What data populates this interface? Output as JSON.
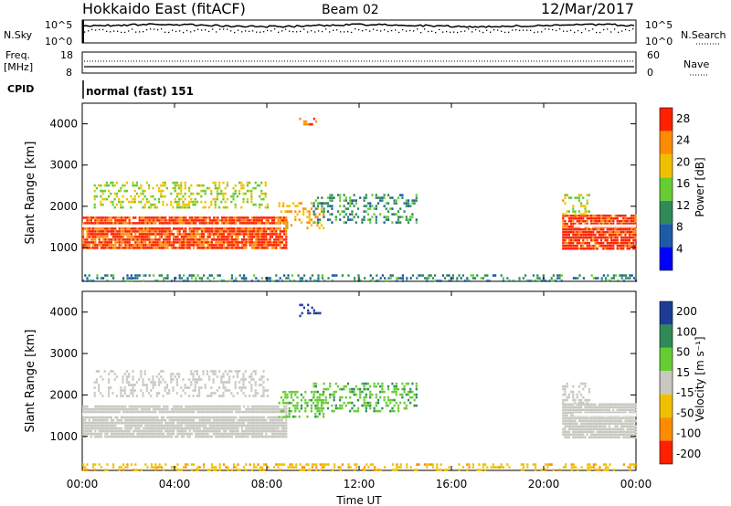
{
  "header": {
    "title": "Hokkaido East (fitACF)",
    "beam": "Beam 02",
    "date": "12/Mar/2017"
  },
  "top_panels": {
    "nsky_label": "N.Sky",
    "nsky_ticks": [
      "10^5",
      "10^0"
    ],
    "nsearch_label": "N.Search",
    "nsearch_ticks": [
      "10^5",
      "10^0"
    ],
    "freq_label": "Freq.",
    "freq_unit": "[MHz]",
    "freq_ticks": [
      "18",
      "8"
    ],
    "nave_label": "Nave",
    "nave_ticks": [
      "60",
      "0"
    ],
    "cpid_label": "CPID",
    "cpid_value": "normal (fast) 151"
  },
  "chart_data": [
    {
      "type": "heatmap",
      "name": "power",
      "ylabel": "Slant Range [km]",
      "yticks": [
        "4000",
        "3000",
        "2000",
        "1000"
      ],
      "ylim": [
        180,
        4500
      ],
      "xlim": [
        0,
        24
      ],
      "colorbar_label": "Power [dB]",
      "colorbar_ticks": [
        "28",
        "24",
        "20",
        "16",
        "12",
        "8",
        "4"
      ],
      "colorbar_range": [
        0,
        30
      ],
      "colors": [
        "#0000ff",
        "#1d5ba6",
        "#2e8b57",
        "#66cc33",
        "#f0c000",
        "#ff8c00",
        "#ff2000"
      ],
      "regions": [
        {
          "t": [
            0.0,
            8.8
          ],
          "range": [
            1000,
            1750
          ],
          "level": 27
        },
        {
          "t": [
            0.5,
            8.0
          ],
          "range": [
            2000,
            2600
          ],
          "level": 17
        },
        {
          "t": [
            8.5,
            10.5
          ],
          "range": [
            1500,
            2100
          ],
          "level": 21
        },
        {
          "t": [
            10.0,
            14.5
          ],
          "range": [
            1600,
            2300
          ],
          "level": 11
        },
        {
          "t": [
            9.4,
            10.3
          ],
          "range": [
            4000,
            4150
          ],
          "level": 26
        },
        {
          "t": [
            20.8,
            24.0
          ],
          "range": [
            1000,
            1800
          ],
          "level": 28
        },
        {
          "t": [
            20.8,
            22.0
          ],
          "range": [
            1800,
            2300
          ],
          "level": 18
        },
        {
          "t": [
            0.0,
            24.0
          ],
          "range": [
            180,
            350
          ],
          "level": 10
        }
      ]
    },
    {
      "type": "heatmap",
      "name": "velocity",
      "ylabel": "Slant Range [km]",
      "yticks": [
        "4000",
        "3000",
        "2000",
        "1000"
      ],
      "ylim": [
        180,
        4500
      ],
      "xlim": [
        0,
        24
      ],
      "xlabel": "Time UT",
      "xticks": [
        "00:00",
        "04:00",
        "08:00",
        "12:00",
        "16:00",
        "20:00",
        "00:00"
      ],
      "colorbar_label": "Velocity [m s⁻¹]",
      "colorbar_ticks": [
        "200",
        "100",
        "50",
        "15",
        "-15",
        "-50",
        "-100",
        "-200"
      ],
      "colors": [
        "#1e3c96",
        "#2e8b57",
        "#66cc33",
        "#c8c8c0",
        "#f0c000",
        "#ff8c00",
        "#ff2000"
      ],
      "regions": [
        {
          "t": [
            0.0,
            8.8
          ],
          "range": [
            1000,
            1750
          ],
          "level": 0
        },
        {
          "t": [
            0.5,
            8.0
          ],
          "range": [
            2000,
            2600
          ],
          "level": 0
        },
        {
          "t": [
            8.5,
            10.5
          ],
          "range": [
            1500,
            2100
          ],
          "level": 40
        },
        {
          "t": [
            10.0,
            14.5
          ],
          "range": [
            1600,
            2300
          ],
          "level": 45
        },
        {
          "t": [
            9.4,
            10.3
          ],
          "range": [
            3900,
            4200
          ],
          "level": 120
        },
        {
          "t": [
            20.8,
            24.0
          ],
          "range": [
            1000,
            1800
          ],
          "level": 0
        },
        {
          "t": [
            20.8,
            22.0
          ],
          "range": [
            1800,
            2300
          ],
          "level": 0
        },
        {
          "t": [
            0.0,
            24.0
          ],
          "range": [
            180,
            350
          ],
          "level": -40
        }
      ]
    }
  ]
}
